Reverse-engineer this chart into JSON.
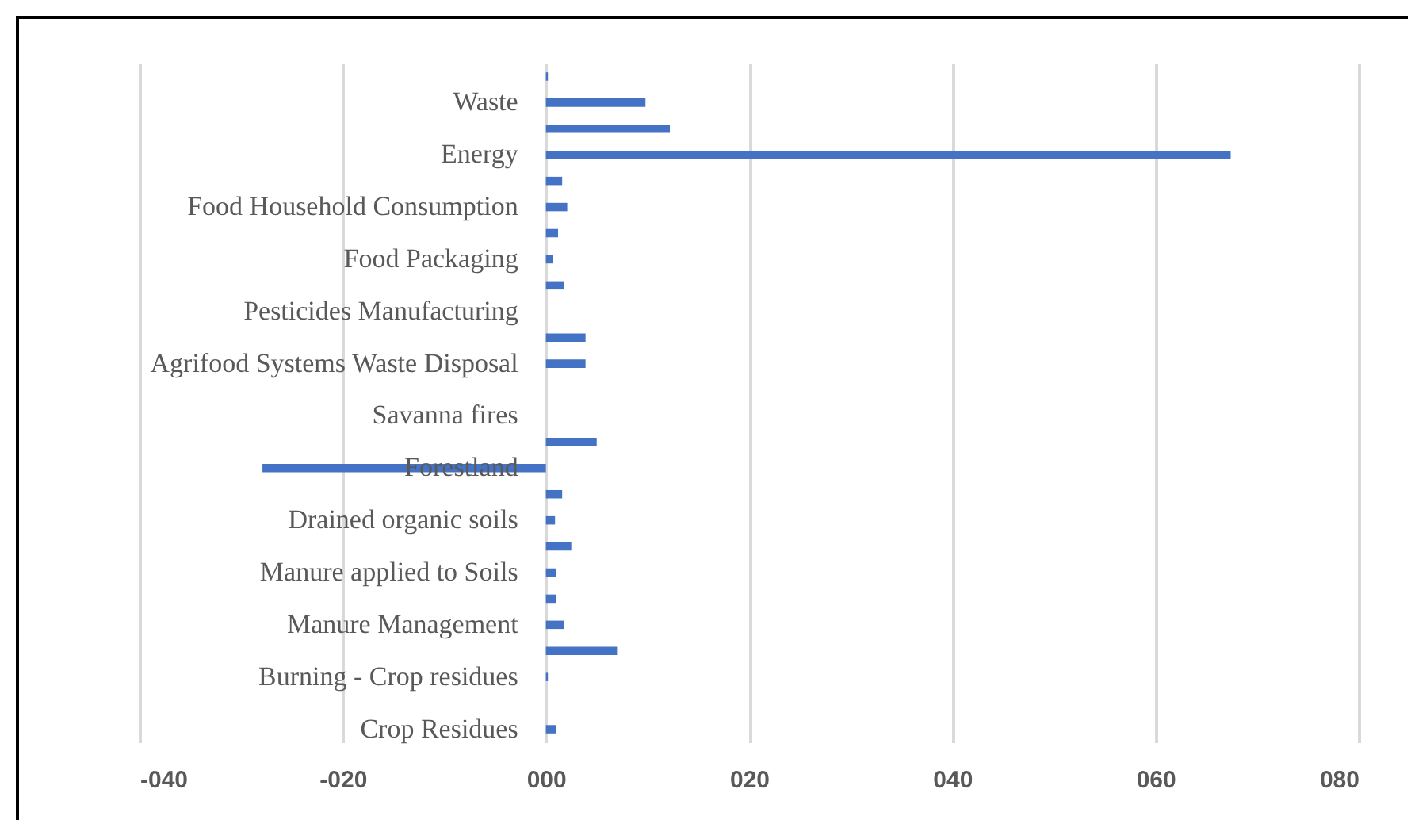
{
  "chart_data": {
    "type": "bar",
    "orientation": "horizontal",
    "categories": [
      null,
      "Waste",
      null,
      "Energy",
      null,
      "Food Household Consumption",
      null,
      "Food Packaging",
      null,
      "Pesticides Manufacturing",
      null,
      "Agrifood Systems Waste Disposal",
      null,
      "Savanna fires",
      null,
      "Forestland",
      null,
      "Drained organic soils",
      null,
      "Manure applied to Soils",
      null,
      "Manure Management",
      null,
      "Burning - Crop residues",
      null,
      "Crop Residues"
    ],
    "values": [
      0.2,
      9.8,
      12.2,
      67.4,
      1.6,
      2.1,
      1.2,
      0.7,
      1.8,
      null,
      3.9,
      3.9,
      null,
      null,
      5.0,
      -27.9,
      1.6,
      0.9,
      2.5,
      1.0,
      1.0,
      1.8,
      7.0,
      0.2,
      null,
      1.0
    ],
    "color": "#4472c4",
    "xlim": [
      -40,
      80
    ],
    "xticks": [
      {
        "value": -40,
        "label": "-040"
      },
      {
        "value": -20,
        "label": "-020"
      },
      {
        "value": 0,
        "label": "000"
      },
      {
        "value": 20,
        "label": "020"
      },
      {
        "value": 40,
        "label": "040"
      },
      {
        "value": 60,
        "label": "060"
      },
      {
        "value": 80,
        "label": "080"
      }
    ],
    "grid": "x"
  }
}
